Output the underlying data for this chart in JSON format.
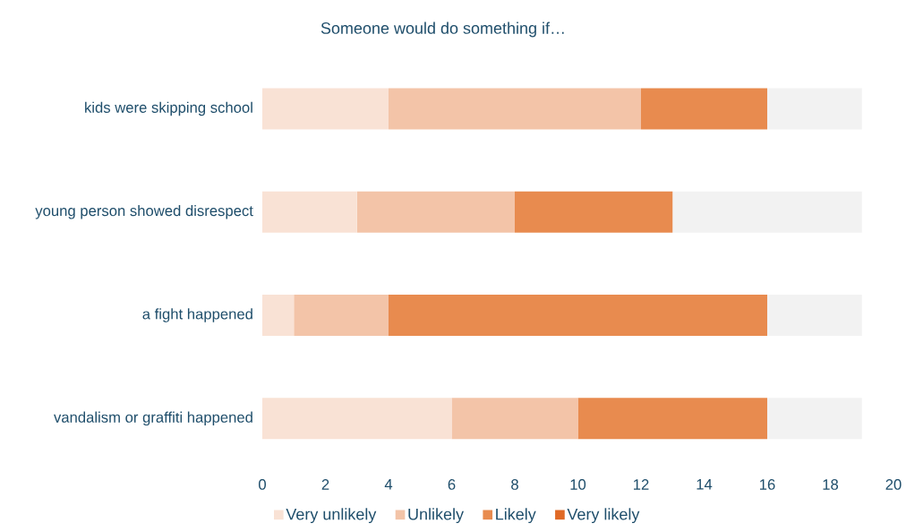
{
  "chart_data": {
    "type": "bar",
    "orientation": "horizontal",
    "stacked": true,
    "title": "Someone would do something if…",
    "categories": [
      "kids were skipping school",
      "young person showed disrespect",
      "a fight happened",
      "vandalism or graffiti happened"
    ],
    "series": [
      {
        "name": "Very unlikely",
        "color": "#f9e2d5",
        "values": [
          4,
          3,
          1,
          6
        ]
      },
      {
        "name": "Unlikely",
        "color": "#f3c4a8",
        "values": [
          8,
          5,
          3,
          4
        ]
      },
      {
        "name": "Likely",
        "color": "#e88b4f",
        "values": [
          4,
          5,
          12,
          6
        ]
      },
      {
        "name": "Very likely",
        "color": "#e06a26",
        "values": [
          0,
          0,
          0,
          0
        ]
      },
      {
        "color": "#f2f2f2",
        "values": [
          3,
          6,
          3,
          3
        ]
      }
    ],
    "xlim": [
      0,
      20
    ],
    "xticks": [
      0,
      2,
      4,
      6,
      8,
      10,
      12,
      14,
      16,
      18,
      20
    ],
    "legend": "bottom"
  }
}
